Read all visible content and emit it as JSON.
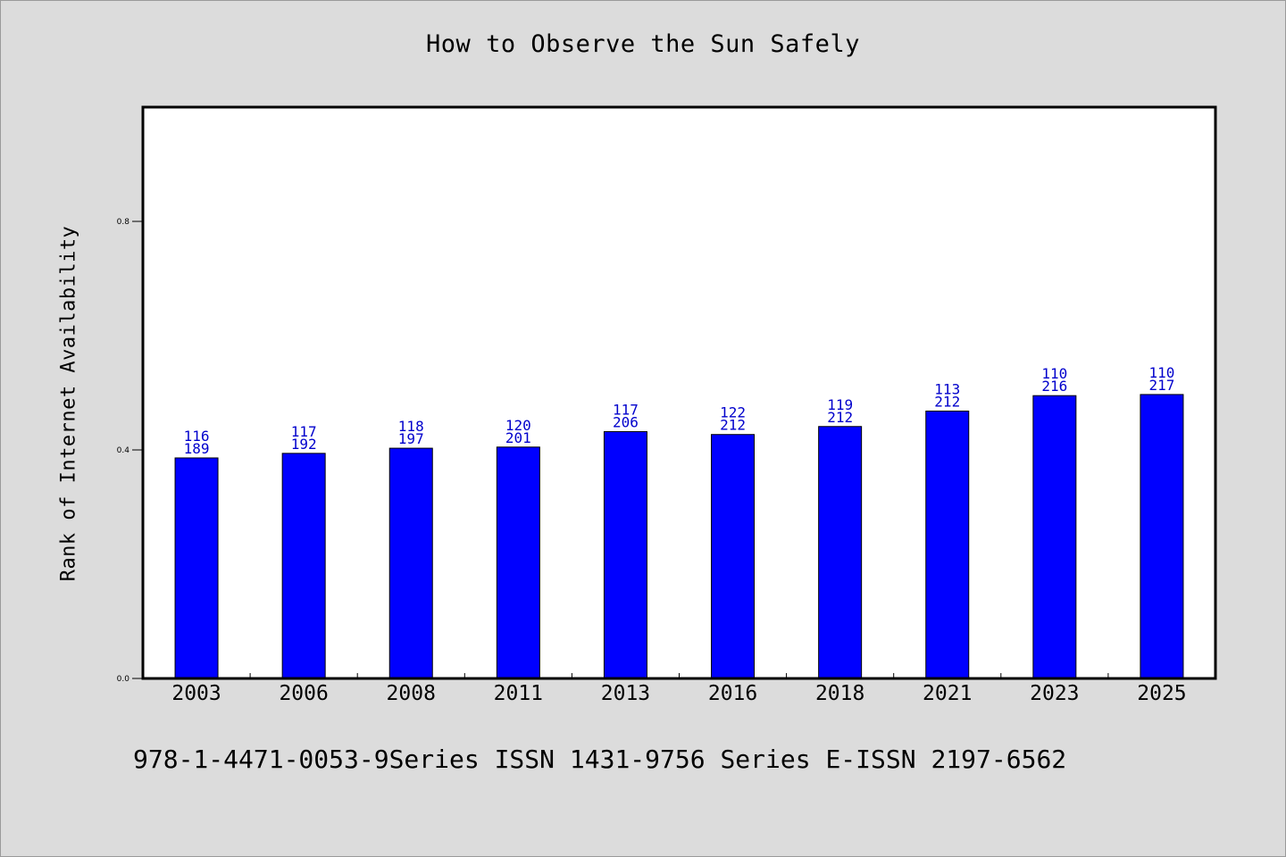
{
  "chart_data": {
    "type": "bar",
    "title": "How to Observe the Sun Safely",
    "xlabel": "",
    "ylabel": "Rank of Internet Availability",
    "categories": [
      "2003",
      "2006",
      "2008",
      "2011",
      "2013",
      "2016",
      "2018",
      "2021",
      "2023",
      "2025"
    ],
    "values": [
      0.386,
      0.394,
      0.403,
      0.405,
      0.432,
      0.427,
      0.441,
      0.468,
      0.495,
      0.497
    ],
    "bar_labels_top": [
      "116",
      "117",
      "118",
      "120",
      "117",
      "122",
      "119",
      "113",
      "110",
      "110"
    ],
    "bar_labels_bottom": [
      "189",
      "192",
      "197",
      "201",
      "206",
      "212",
      "212",
      "212",
      "216",
      "217"
    ],
    "ylim": [
      0.0,
      1.0
    ],
    "yticks": [
      0.0,
      0.4,
      0.8
    ],
    "ytick_labels": [
      "0.0",
      "0.4",
      "0.8"
    ],
    "grid": false,
    "legend": "none",
    "colors": {
      "bar_fill": "#0000ff",
      "bar_stroke": "#000000",
      "bar_label": "#0000cc",
      "plot_background": "#ffffff",
      "figure_background": "#dcdcdc"
    }
  },
  "footer": {
    "text": "978-1-4471-0053-9Series ISSN 1431-9756 Series E-ISSN 2197-6562"
  }
}
